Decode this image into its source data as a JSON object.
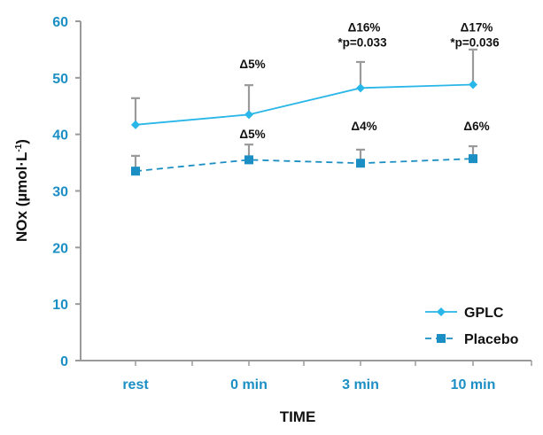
{
  "chart_data": {
    "type": "line",
    "categories": [
      "rest",
      "0 min",
      "3 min",
      "10 min"
    ],
    "xlabel": "TIME",
    "ylabel": "NOx (µmol·L",
    "ylabel_sup": "-1",
    "ylabel_close": ")",
    "ylim": [
      0,
      60
    ],
    "yticks": [
      0,
      10,
      20,
      30,
      40,
      50,
      60
    ],
    "grid": false,
    "legend_position": "bottom-right",
    "series": [
      {
        "name": "GPLC",
        "values": [
          41.7,
          43.5,
          48.2,
          48.8
        ],
        "error": [
          4.7,
          5.2,
          4.6,
          6.2
        ],
        "color": "#29b6e8",
        "marker": "diamond",
        "line_style": "solid"
      },
      {
        "name": "Placebo",
        "values": [
          33.5,
          35.5,
          34.9,
          35.7
        ],
        "error": [
          2.7,
          2.7,
          2.4,
          2.2
        ],
        "color": "#1b8fc4",
        "marker": "square",
        "line_style": "dashed"
      }
    ],
    "annotations": [
      {
        "category": "0 min",
        "y": 52.5,
        "text": "Δ5%"
      },
      {
        "category": "3 min",
        "y": 59.0,
        "text": "Δ16%"
      },
      {
        "category": "3 min",
        "y": 56.3,
        "text": "*p=0.033"
      },
      {
        "category": "10 min",
        "y": 59.0,
        "text": "Δ17%"
      },
      {
        "category": "10 min",
        "y": 56.3,
        "text": "*p=0.036"
      },
      {
        "category": "0 min",
        "y": 40.1,
        "text": "Δ5%"
      },
      {
        "category": "3 min",
        "y": 41.5,
        "text": "Δ4%"
      },
      {
        "category": "10 min",
        "y": 41.5,
        "text": "Δ6%"
      }
    ]
  }
}
